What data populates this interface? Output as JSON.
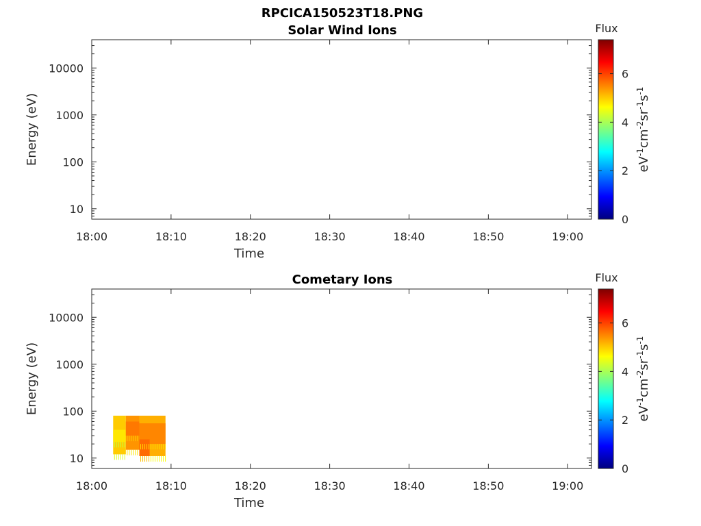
{
  "figure_title": "RPCICA150523T18.PNG",
  "colormap": [
    "#00007f",
    "#0000ff",
    "#007fff",
    "#00ffff",
    "#7fff7f",
    "#ffff00",
    "#ff7f00",
    "#ff0000",
    "#7f0000"
  ],
  "chart_data": [
    {
      "type": "heatmap",
      "title": "Solar Wind Ions",
      "xlabel": "Time",
      "ylabel": "Energy (eV)",
      "x_ticks": [
        "18:00",
        "18:10",
        "18:20",
        "18:30",
        "18:40",
        "18:50",
        "19:00"
      ],
      "x_range_minutes": [
        0,
        63
      ],
      "y_scale": "log",
      "y_ticks": [
        "10",
        "100",
        "1000",
        "10000"
      ],
      "y_range": [
        6,
        40000
      ],
      "colorbar": {
        "label": "Flux",
        "unit": "eV-1cm-2sr-1s-1",
        "ticks": [
          "0",
          "2",
          "4",
          "6"
        ],
        "range": [
          0,
          7.4
        ]
      },
      "cells": []
    },
    {
      "type": "heatmap",
      "title": "Cometary Ions",
      "xlabel": "Time",
      "ylabel": "Energy (eV)",
      "x_ticks": [
        "18:00",
        "18:10",
        "18:20",
        "18:30",
        "18:40",
        "18:50",
        "19:00"
      ],
      "x_range_minutes": [
        0,
        63
      ],
      "y_scale": "log",
      "y_ticks": [
        "10",
        "100",
        "1000",
        "10000"
      ],
      "y_range": [
        6,
        40000
      ],
      "colorbar": {
        "label": "Flux",
        "unit": "eV-1cm-2sr-1s-1",
        "ticks": [
          "0",
          "2",
          "4",
          "6"
        ],
        "range": [
          0,
          7.4
        ]
      },
      "cells": [
        {
          "t0": 2.7,
          "t1": 4.3,
          "e0": 12,
          "e1": 80,
          "flux": 5.0
        },
        {
          "t0": 2.7,
          "t1": 4.3,
          "e0": 22,
          "e1": 40,
          "flux": 4.8
        },
        {
          "t0": 4.3,
          "t1": 6.0,
          "e0": 15,
          "e1": 80,
          "flux": 5.4
        },
        {
          "t0": 4.3,
          "t1": 6.0,
          "e0": 30,
          "e1": 60,
          "flux": 5.6
        },
        {
          "t0": 6.0,
          "t1": 9.3,
          "e0": 11,
          "e1": 80,
          "flux": 5.2
        },
        {
          "t0": 6.0,
          "t1": 9.3,
          "e0": 20,
          "e1": 55,
          "flux": 5.5
        },
        {
          "t0": 6.0,
          "t1": 7.3,
          "e0": 11,
          "e1": 25,
          "flux": 5.7
        }
      ]
    }
  ]
}
